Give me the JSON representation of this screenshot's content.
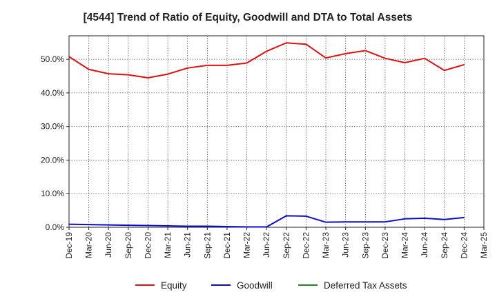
{
  "chart_data": {
    "type": "line",
    "title": "[4544]  Trend of Ratio of Equity, Goodwill and DTA to Total Assets",
    "xlabel": "",
    "ylabel": "",
    "categories": [
      "Dec-19",
      "Mar-20",
      "Jun-20",
      "Sep-20",
      "Dec-20",
      "Mar-21",
      "Jun-21",
      "Sep-21",
      "Dec-21",
      "Mar-22",
      "Jun-22",
      "Sep-22",
      "Dec-22",
      "Mar-23",
      "Jun-23",
      "Sep-23",
      "Dec-23",
      "Mar-24",
      "Jun-24",
      "Sep-24",
      "Dec-24",
      "Mar-25"
    ],
    "ylim": [
      0,
      57
    ],
    "yticks": [
      0,
      10,
      20,
      30,
      40,
      50
    ],
    "ytick_labels": [
      "0.0%",
      "10.0%",
      "20.0%",
      "30.0%",
      "40.0%",
      "50.0%"
    ],
    "grid": true,
    "legend_position": "bottom",
    "series": [
      {
        "name": "Equity",
        "color": "#dd1111",
        "values": [
          50.8,
          47.0,
          45.7,
          45.4,
          44.5,
          45.6,
          47.4,
          48.2,
          48.2,
          48.9,
          52.4,
          54.9,
          54.5,
          50.4,
          51.7,
          52.6,
          50.3,
          49.0,
          50.3,
          46.7,
          48.4,
          null
        ]
      },
      {
        "name": "Goodwill",
        "color": "#0a0acc",
        "values": [
          0.9,
          0.8,
          0.7,
          0.6,
          0.5,
          0.4,
          0.3,
          0.3,
          0.2,
          0.1,
          0.1,
          3.4,
          3.3,
          1.5,
          1.6,
          1.6,
          1.6,
          2.5,
          2.7,
          2.3,
          2.9,
          null
        ]
      },
      {
        "name": "Deferred Tax Assets",
        "color": "#1a8a1a",
        "values": [
          null,
          null,
          null,
          null,
          null,
          null,
          null,
          null,
          null,
          null,
          null,
          null,
          null,
          null,
          null,
          null,
          null,
          null,
          null,
          null,
          null,
          null
        ]
      }
    ]
  }
}
